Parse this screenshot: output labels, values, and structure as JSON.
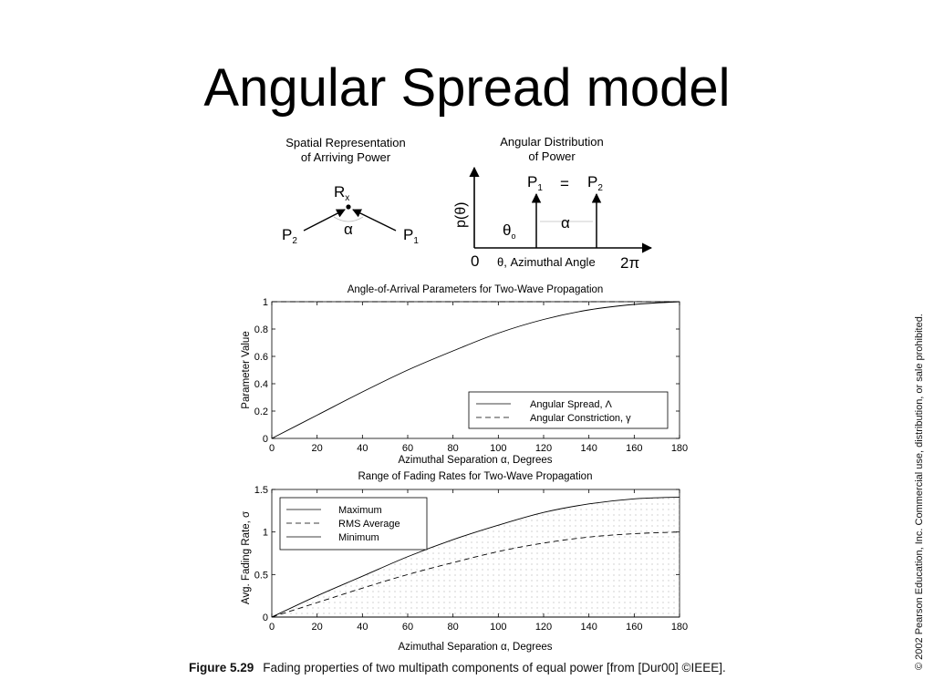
{
  "slide": {
    "title": "Angular Spread model",
    "copyright": "© 2002 Pearson Education, Inc. Commercial use, distribution, or sale prohibited."
  },
  "caption": {
    "figure_label": "Figure 5.29",
    "text": "Fading properties of two multipath components of equal power [from [Dur00] ©IEEE]."
  },
  "diagram_spatial": {
    "title_line1": "Spatial Representation",
    "title_line2": "of Arriving Power",
    "receiver_label": "R",
    "receiver_sub": "x",
    "left_label": "P",
    "left_sub": "2",
    "right_label": "P",
    "right_sub": "1",
    "angle_label": "α"
  },
  "diagram_angular": {
    "title_line1": "Angular Distribution",
    "title_line2": "of Power",
    "y_label": "p(θ)",
    "p1_label": "P",
    "p1_sub": "1",
    "equals": "=",
    "p2_label": "P",
    "p2_sub": "2",
    "theta0": "θ",
    "theta0_sub": "o",
    "alpha": "α",
    "origin": "0",
    "x_label": "θ, Azimuthal Angle",
    "x_end": "2π"
  },
  "chart_data": [
    {
      "type": "line",
      "title": "Angle-of-Arrival Parameters for Two-Wave Propagation",
      "xlabel": "Azimuthal Separation α, Degrees",
      "ylabel": "Parameter Value",
      "xlim": [
        0,
        180
      ],
      "ylim": [
        0,
        1
      ],
      "xticks": [
        0,
        20,
        40,
        60,
        80,
        100,
        120,
        140,
        160,
        180
      ],
      "yticks": [
        0,
        0.2,
        0.4,
        0.6,
        0.8,
        1
      ],
      "legend_position": "lower-right",
      "series": [
        {
          "name": "Angular Spread, Λ",
          "style": "solid",
          "x": [
            0,
            20,
            40,
            60,
            80,
            100,
            120,
            140,
            160,
            180
          ],
          "y": [
            0,
            0.17,
            0.34,
            0.5,
            0.64,
            0.77,
            0.87,
            0.94,
            0.98,
            1.0
          ]
        },
        {
          "name": "Angular Constriction, γ",
          "style": "dashed",
          "x": [
            0,
            180
          ],
          "y": [
            1,
            1
          ]
        }
      ]
    },
    {
      "type": "line",
      "title": "Range of Fading Rates for Two-Wave Propagation",
      "xlabel": "Azimuthal Separation α, Degrees",
      "ylabel": "Avg. Fading Rate, σ",
      "xlim": [
        0,
        180
      ],
      "ylim": [
        0,
        1.5
      ],
      "xticks": [
        0,
        20,
        40,
        60,
        80,
        100,
        120,
        140,
        160,
        180
      ],
      "yticks": [
        0,
        0.5,
        1,
        1.5
      ],
      "legend_position": "top-left",
      "series": [
        {
          "name": "Maximum",
          "style": "solid",
          "x": [
            0,
            20,
            40,
            60,
            80,
            100,
            120,
            140,
            160,
            180
          ],
          "y": [
            0,
            0.25,
            0.48,
            0.71,
            0.91,
            1.08,
            1.23,
            1.33,
            1.39,
            1.41
          ]
        },
        {
          "name": "RMS Average",
          "style": "dashed",
          "x": [
            0,
            20,
            40,
            60,
            80,
            100,
            120,
            140,
            160,
            180
          ],
          "y": [
            0,
            0.17,
            0.34,
            0.5,
            0.64,
            0.77,
            0.87,
            0.94,
            0.98,
            1.0
          ]
        },
        {
          "name": "Minimum",
          "style": "solid",
          "x": [
            0,
            180
          ],
          "y": [
            0,
            0
          ]
        }
      ]
    }
  ]
}
